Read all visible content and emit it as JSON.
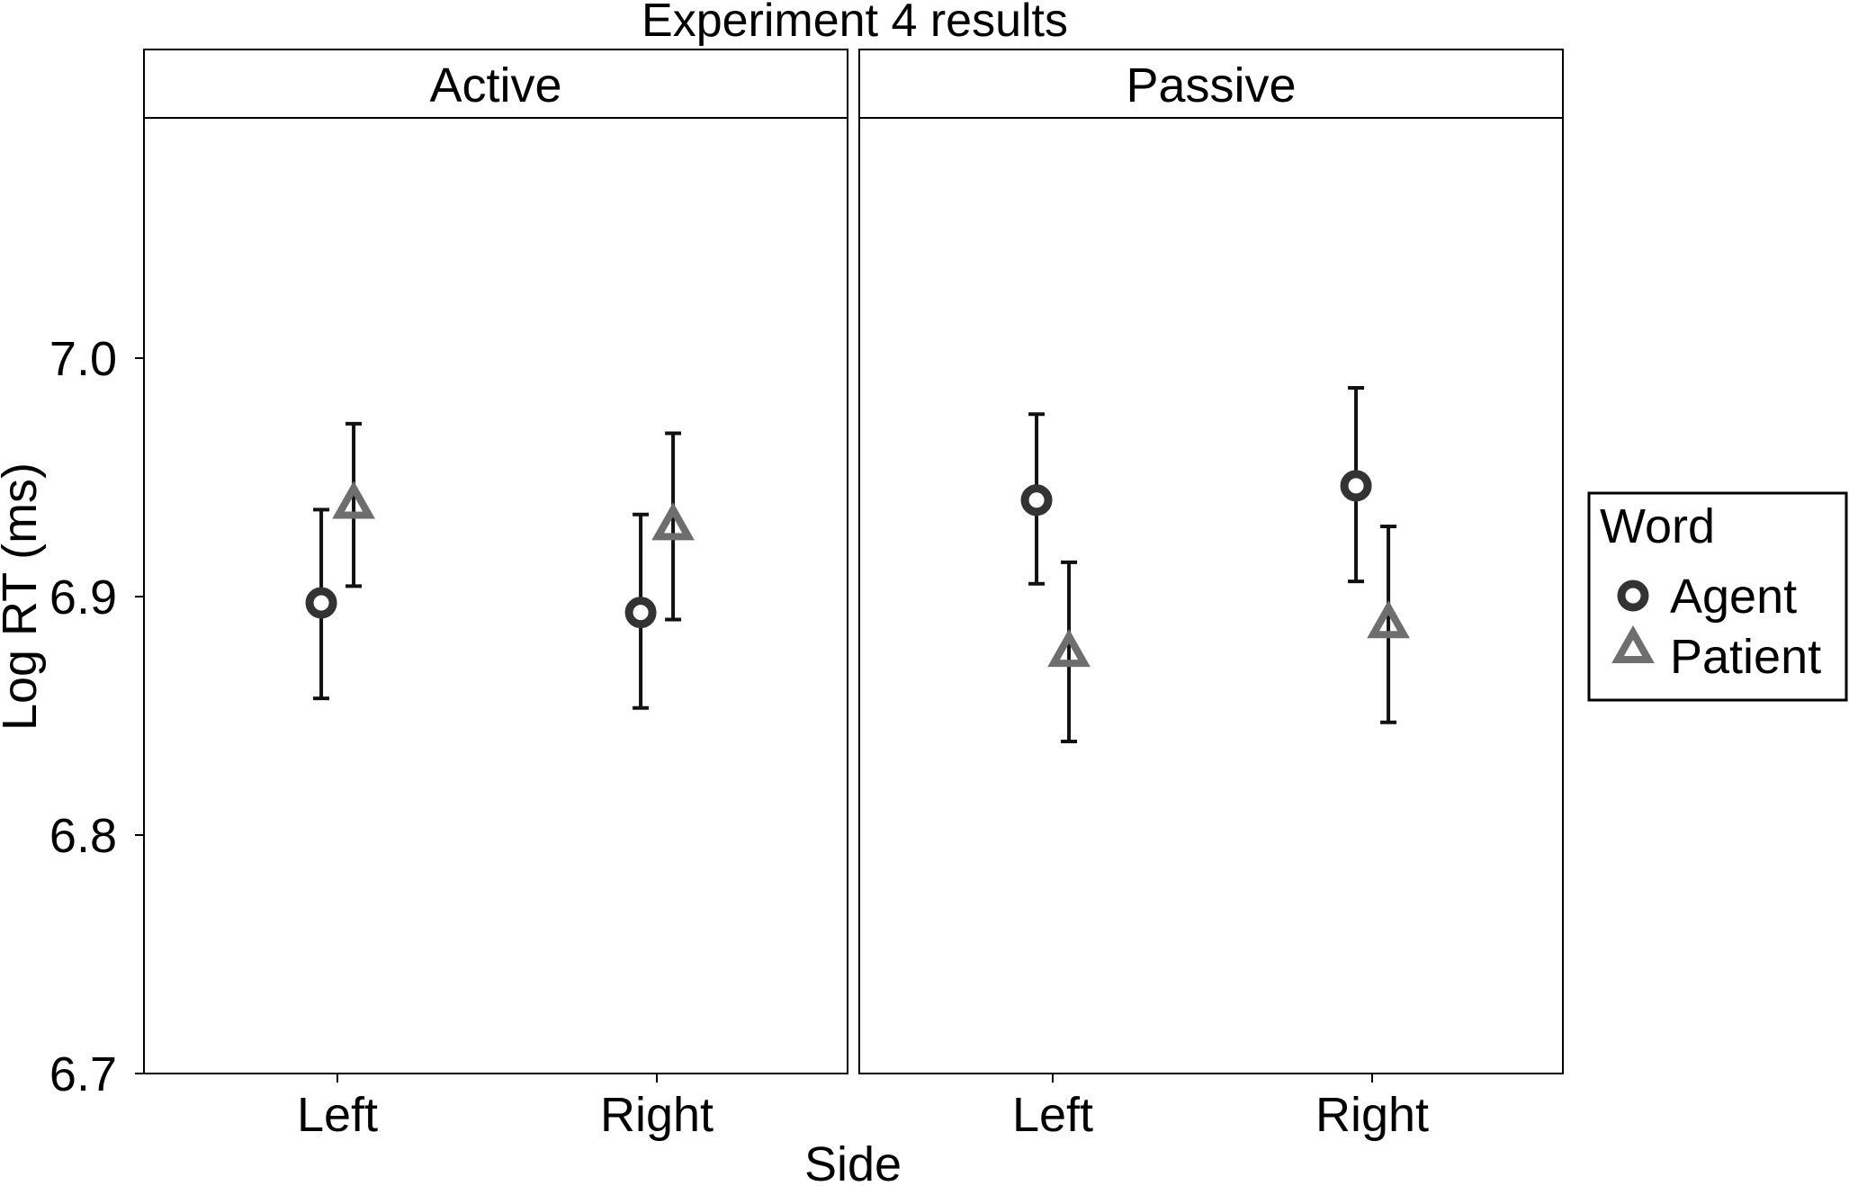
{
  "chart_data": {
    "type": "scatter",
    "title": "Experiment 4 results",
    "xlabel": "Side",
    "ylabel": "Log RT (ms)",
    "ylim": [
      6.7,
      7.1
    ],
    "yticks": [
      "6.7",
      "6.8",
      "6.9",
      "7.0"
    ],
    "categories": [
      "Left",
      "Right"
    ],
    "grid": false,
    "legend": {
      "title": "Word",
      "position": "right",
      "entries": [
        "Agent",
        "Patient"
      ]
    },
    "colors": {
      "Agent": "#333333",
      "Patient": "#6e6e6e",
      "errorbar": "#111111"
    },
    "panels": [
      {
        "name": "Active",
        "series": [
          {
            "name": "Agent",
            "marker": "circle",
            "values": [
              6.897,
              6.893
            ],
            "lower": [
              6.857,
              6.853
            ],
            "upper": [
              6.936,
              6.934
            ]
          },
          {
            "name": "Patient",
            "marker": "triangle",
            "values": [
              6.938,
              6.929
            ],
            "lower": [
              6.904,
              6.89
            ],
            "upper": [
              6.972,
              6.968
            ]
          }
        ]
      },
      {
        "name": "Passive",
        "series": [
          {
            "name": "Agent",
            "marker": "circle",
            "values": [
              6.94,
              6.946
            ],
            "lower": [
              6.905,
              6.906
            ],
            "upper": [
              6.976,
              6.987
            ]
          },
          {
            "name": "Patient",
            "marker": "triangle",
            "values": [
              6.876,
              6.888
            ],
            "lower": [
              6.839,
              6.847
            ],
            "upper": [
              6.914,
              6.929
            ]
          }
        ]
      }
    ]
  }
}
